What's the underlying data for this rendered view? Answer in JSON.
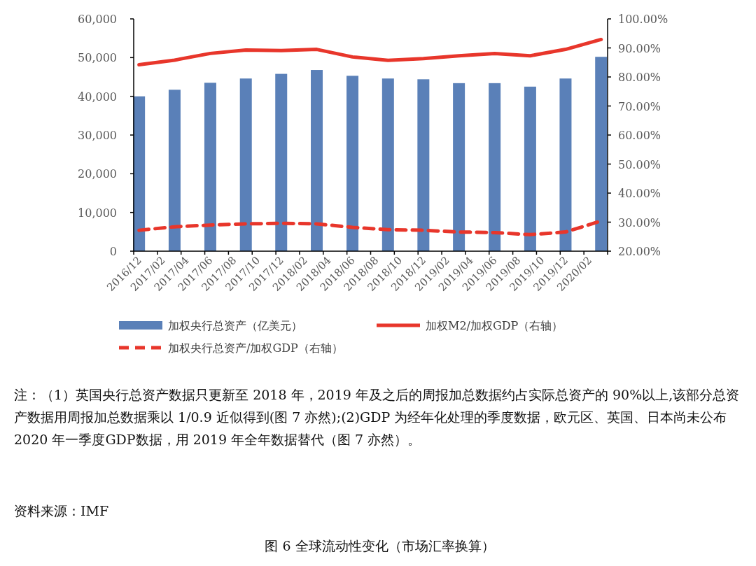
{
  "chart_data": {
    "type": "bar",
    "x": [
      "2016-12-15",
      "2017-03-15",
      "2017-06-15",
      "2017-09-15",
      "2017-12-15",
      "2018-03-15",
      "2018-06-15",
      "2018-09-15",
      "2018-12-15",
      "2019-03-15",
      "2019-06-15",
      "2019-09-15",
      "2019-12-15",
      "2020-03-15"
    ],
    "series": [
      {
        "name": "加权央行总资产（亿美元）",
        "color": "#5a80b8",
        "values": [
          40000,
          41700,
          43500,
          44600,
          45800,
          46800,
          45300,
          44600,
          44400,
          43400,
          43400,
          42500,
          44600,
          50200
        ]
      },
      {
        "name": "加权M2/加权GDP（右轴）",
        "type": "line",
        "axis": "y2",
        "line_style": "solid",
        "color": "#e8362b",
        "values": [
          84.2,
          85.8,
          88.1,
          89.3,
          89.1,
          89.5,
          86.9,
          85.7,
          86.3,
          87.3,
          88.1,
          87.3,
          89.5,
          92.9
        ]
      },
      {
        "name": "加权央行总资产/加权GDP（右轴）",
        "type": "line",
        "axis": "y2",
        "line_style": "dashed",
        "color": "#e8362b",
        "values": [
          27.2,
          28.4,
          29.0,
          29.4,
          29.6,
          29.4,
          28.2,
          27.4,
          27.2,
          26.6,
          26.4,
          25.7,
          26.6,
          30.4
        ]
      }
    ],
    "xlim": [
      "2016-12-01",
      "2020-04-01"
    ],
    "xticks": [
      {
        "value": "2016-12-01",
        "label": "2016/12"
      },
      {
        "value": "2017-02-01",
        "label": "2017/02"
      },
      {
        "value": "2017-04-01",
        "label": "2017/04"
      },
      {
        "value": "2017-06-01",
        "label": "2017/06"
      },
      {
        "value": "2017-08-01",
        "label": "2017/08"
      },
      {
        "value": "2017-10-01",
        "label": "2017/10"
      },
      {
        "value": "2017-12-01",
        "label": "2017/12"
      },
      {
        "value": "2018-02-01",
        "label": "2018/02"
      },
      {
        "value": "2018-04-01",
        "label": "2018/04"
      },
      {
        "value": "2018-06-01",
        "label": "2018/06"
      },
      {
        "value": "2018-08-01",
        "label": "2018/08"
      },
      {
        "value": "2018-10-01",
        "label": "2018/10"
      },
      {
        "value": "2018-12-01",
        "label": "2018/12"
      },
      {
        "value": "2019-02-01",
        "label": "2019/02"
      },
      {
        "value": "2019-04-01",
        "label": "2019/04"
      },
      {
        "value": "2019-06-01",
        "label": "2019/06"
      },
      {
        "value": "2019-08-01",
        "label": "2019/08"
      },
      {
        "value": "2019-10-01",
        "label": "2019/10"
      },
      {
        "value": "2019-12-01",
        "label": "2019/12"
      },
      {
        "value": "2020-02-01",
        "label": "2020/02"
      },
      {
        "value": "2020-04-01",
        "label": null
      }
    ],
    "ylim": [
      0,
      60000
    ],
    "yticks": [
      0,
      {
        "value": 10000,
        "label": "10,000"
      },
      {
        "value": 20000,
        "label": "20,000"
      },
      {
        "value": 30000,
        "label": "30,000"
      },
      {
        "value": 40000,
        "label": "40,000"
      },
      {
        "value": 50000,
        "label": "50,000"
      },
      {
        "value": 60000,
        "label": "60,000"
      }
    ],
    "y2lim": [
      20,
      100
    ],
    "y2ticks": [
      {
        "value": 20,
        "label": "20.00%"
      },
      {
        "value": 30,
        "label": "30.00%"
      },
      {
        "value": 40,
        "label": "40.00%"
      },
      {
        "value": 50,
        "label": "50.00%"
      },
      {
        "value": 60,
        "label": "60.00%"
      },
      {
        "value": 70,
        "label": "70.00%"
      },
      {
        "value": 80,
        "label": "80.00%"
      },
      {
        "value": 90,
        "label": "90.00%"
      },
      {
        "value": 100,
        "label": "100.00%"
      }
    ],
    "legend": "bottom",
    "annotations": [
      "注：（1）英国央行总资产数据只更新至 2018 年，2019 年及之后的周报加总数据约占实际总资产的 90%以上,该部分总资产数据用周报加总数据乘以 1/0.9 近似得到(图 7 亦然);(2)GDP 为经年化处理的季度数据，欧元区、英国、日本尚未公布 2020 年一季度GDP数据，用 2019 年全年数据替代（图 7 亦然）。",
      "资料来源：IMF",
      "图 6 全球流动性变化（市场汇率换算）"
    ]
  }
}
